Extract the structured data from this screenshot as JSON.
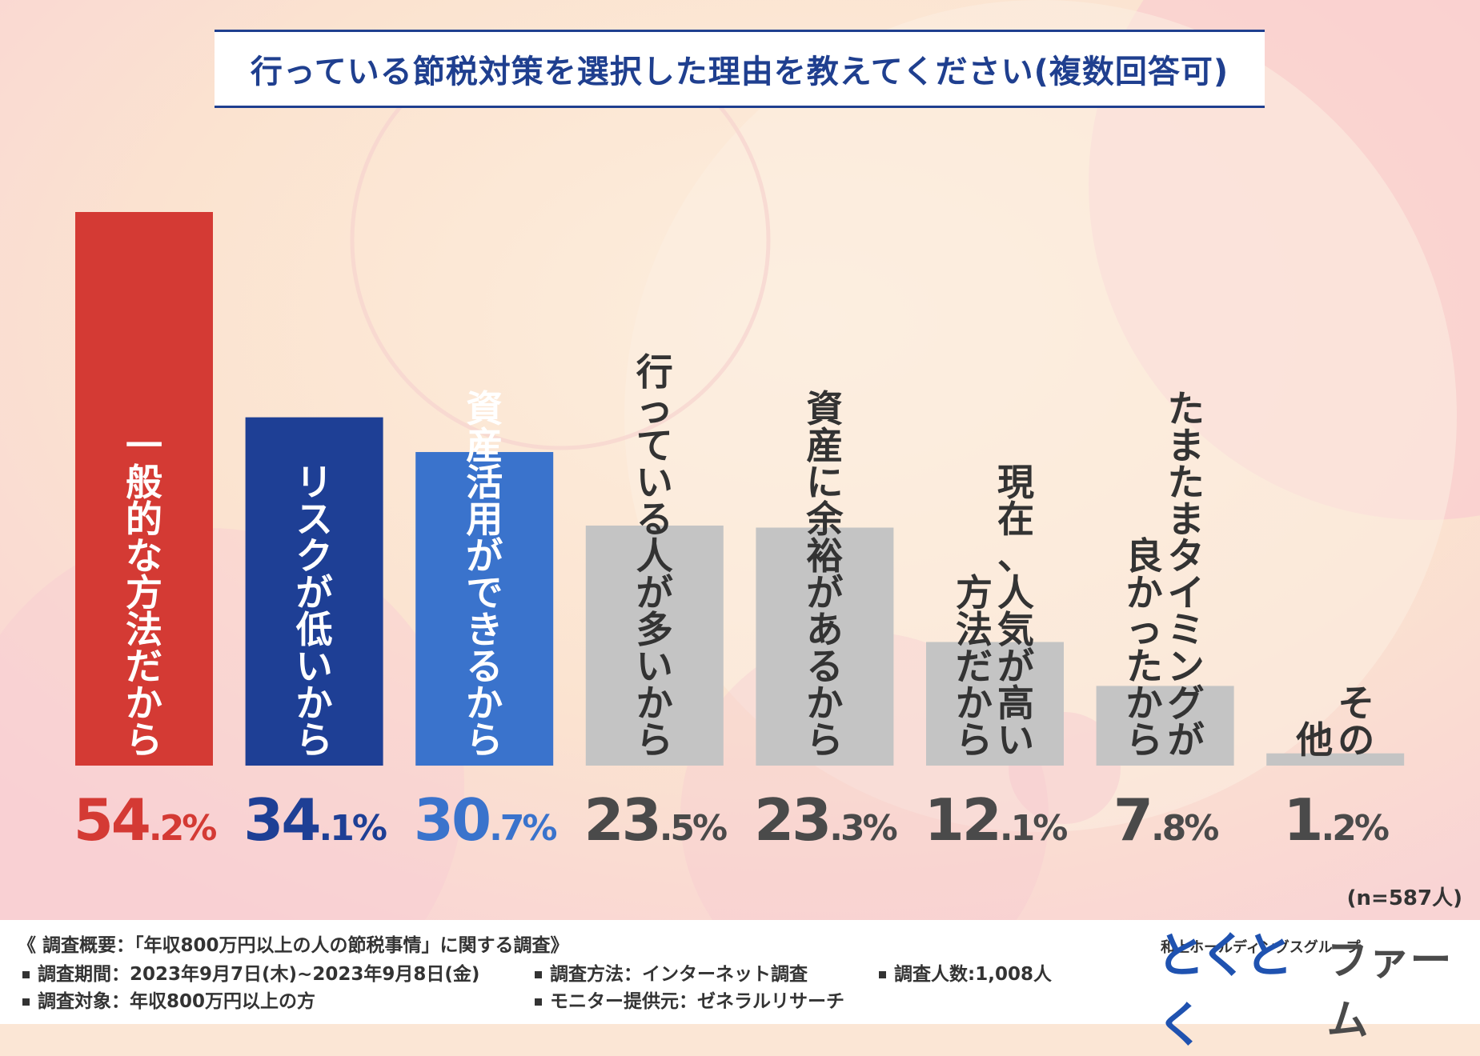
{
  "chart_data": {
    "type": "bar",
    "title": "行っている節税対策を選択した理由を教えてください(複数回答可)",
    "categories": [
      "一般的な方法だから",
      "リスクが低いから",
      "資産活用ができるから",
      "行っている人が多いから",
      "資産に余裕があるから",
      "現在、人気が高い方法だから",
      "たまたまタイミングが良かったから",
      "その他"
    ],
    "category_lines": [
      [
        "一般的な方法だから"
      ],
      [
        "リスクが低いから"
      ],
      [
        "資産活用ができるから"
      ],
      [
        "行っている人が多いから"
      ],
      [
        "資産に余裕があるから"
      ],
      [
        "現在、人気が高い",
        "方法だから"
      ],
      [
        "たまたまタイミングが",
        "良かったから"
      ],
      [
        "その",
        "他"
      ]
    ],
    "values": [
      54.2,
      34.1,
      30.7,
      23.5,
      23.3,
      12.1,
      7.8,
      1.2
    ],
    "value_labels": [
      "54.2",
      "34.1",
      "30.7",
      "23.5",
      "23.3",
      "12.1",
      "7.8",
      "1.2"
    ],
    "unit": "%",
    "ylim": [
      0,
      54.2
    ],
    "xlabel": "",
    "ylabel": "",
    "grid": false,
    "colors": [
      "#d43a34",
      "#1e3f95",
      "#3a73cc",
      "#c4c4c4",
      "#c4c4c4",
      "#c4c4c4",
      "#c4c4c4",
      "#c4c4c4"
    ],
    "label_colors": [
      "#ffffff",
      "#ffffff",
      "#ffffff",
      "#333333",
      "#333333",
      "#333333",
      "#333333",
      "#333333"
    ],
    "value_colors": [
      "#d43a34",
      "#1e3f95",
      "#3a73cc",
      "#4a4a4a",
      "#4a4a4a",
      "#4a4a4a",
      "#4a4a4a",
      "#4a4a4a"
    ]
  },
  "sample_size": "(n=587人)",
  "survey": {
    "title": "《 調査概要：「年収800万円以上の人の節税事情」に関する調査》",
    "period": "調査期間：2023年9月7日(木)~2023年9月8日(金)",
    "method": "調査方法：インターネット調査",
    "count": "調査人数:1,008人",
    "target": "調査対象：年収800万円以上の方",
    "provider": "モニター提供元：ゼネラルリサーチ"
  },
  "brand": {
    "group": "和上ホールディングスグループ",
    "logo_part1": "とくとく",
    "logo_part2": "ファーム"
  }
}
